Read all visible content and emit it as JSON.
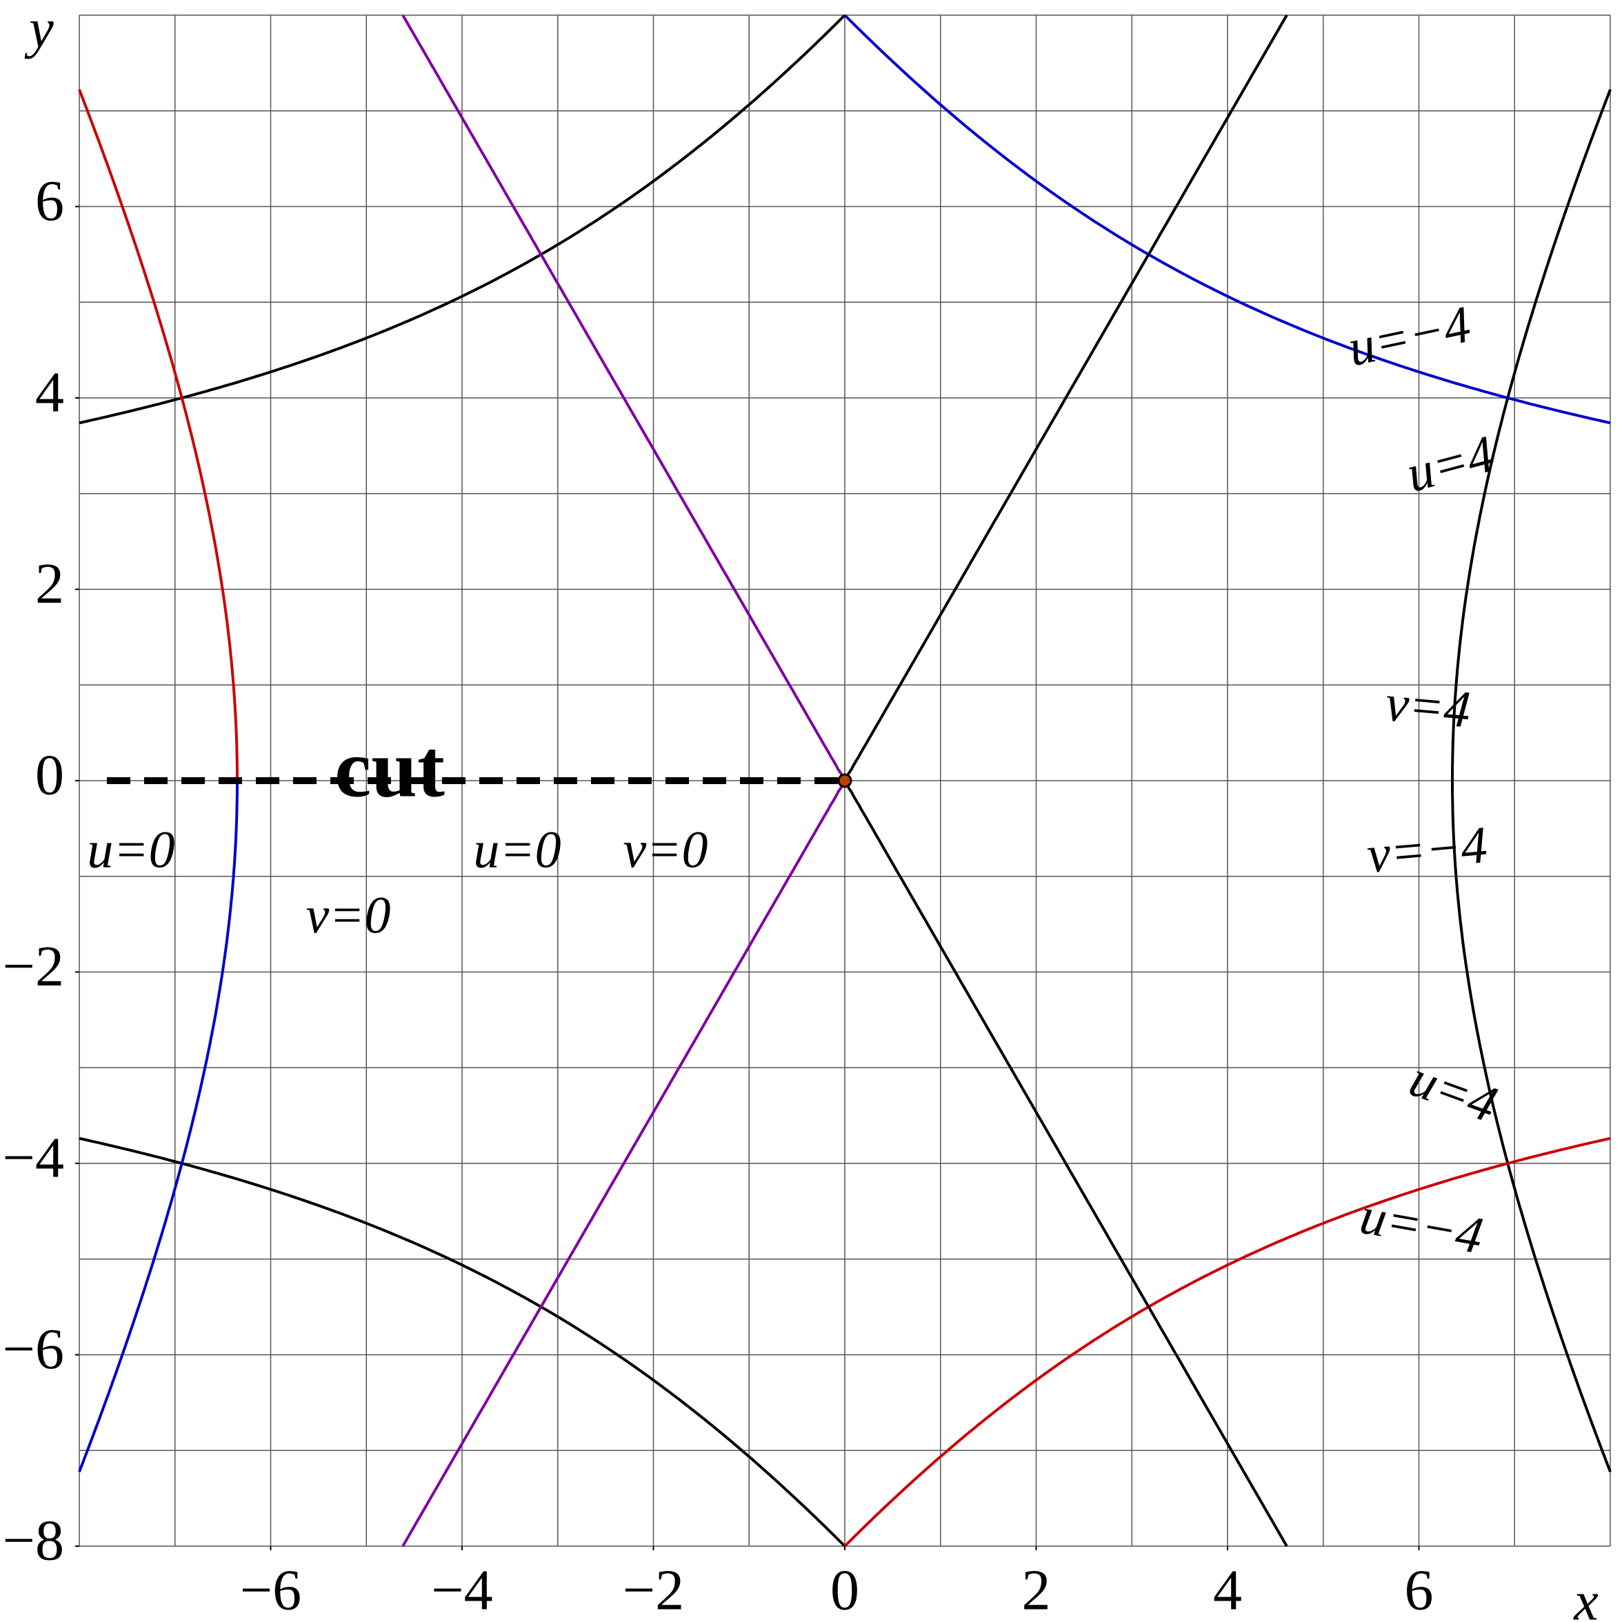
{
  "chart_data": {
    "type": "contour",
    "x_label": "x",
    "y_label": "y",
    "xlim": [
      -8,
      8
    ],
    "ylim": [
      -8,
      8
    ],
    "xticks": [
      {
        "value": -6,
        "label": "−6"
      },
      {
        "value": -4,
        "label": "−4"
      },
      {
        "value": -2,
        "label": "−2"
      },
      0,
      2,
      4,
      6
    ],
    "yticks": [
      {
        "value": -8,
        "label": "−8"
      },
      {
        "value": -6,
        "label": "−6"
      },
      {
        "value": -4,
        "label": "−4"
      },
      {
        "value": -2,
        "label": "−2"
      },
      0,
      2,
      4,
      6
    ],
    "grid": true,
    "grid_step": 1,
    "cut_label": "cut",
    "annotations": [
      {
        "text": "u=−4",
        "value": -4,
        "color": "#000000"
      },
      {
        "text": "u=4",
        "value": 4,
        "color": "#000000"
      },
      {
        "text": "v=4",
        "value": 4,
        "color": "#0000cc"
      },
      {
        "text": "v=−4",
        "value": -4,
        "color": "#cc0000"
      },
      {
        "text": "u=4",
        "value": 4,
        "color": "#000000"
      },
      {
        "text": "u=−4",
        "value": -4,
        "color": "#000000"
      },
      {
        "text": "u=0",
        "value": 0,
        "color": "#000000"
      },
      {
        "text": "u=0",
        "value": 0,
        "color": "#000000"
      },
      {
        "text": "v=0",
        "value": 0,
        "color": "#8000a0"
      },
      {
        "text": "v=0",
        "value": 0,
        "color": "#8000a0"
      }
    ]
  }
}
